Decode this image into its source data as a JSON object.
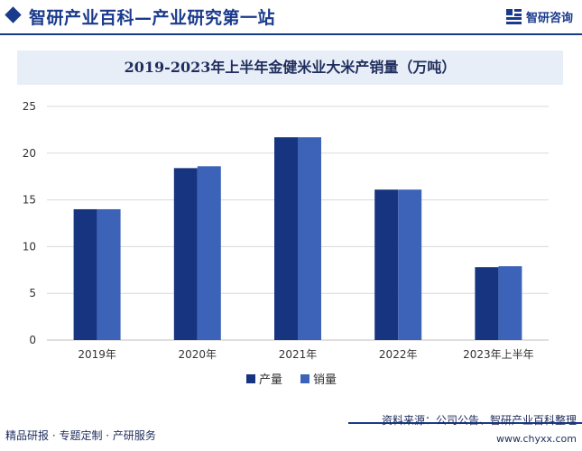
{
  "header": {
    "title": "智研产业百科—产业研究第一站",
    "brand": "智研咨询"
  },
  "colors": {
    "brand": "#1a3a8c",
    "production": "#16347f",
    "sales": "#3c63b8",
    "grid": "#d9d9d9"
  },
  "chart_data": {
    "type": "bar",
    "title": "2019-2023年上半年金健米业大米产销量（万吨）",
    "categories": [
      "2019年",
      "2020年",
      "2021年",
      "2022年",
      "2023年上半年"
    ],
    "series": [
      {
        "name": "产量",
        "values": [
          14.0,
          18.4,
          21.7,
          16.1,
          7.8
        ]
      },
      {
        "name": "销量",
        "values": [
          14.0,
          18.6,
          21.7,
          16.1,
          7.9
        ]
      }
    ],
    "ylim": [
      0,
      25
    ],
    "yticks": [
      0,
      5,
      10,
      15,
      20,
      25
    ],
    "grid": true,
    "legend_position": "bottom-center"
  },
  "footer": {
    "services": "精品研报 · 专题定制 · 产研服务",
    "source": "资料来源：公司公告、智研产业百科整理",
    "url": "www.chyxx.com"
  }
}
